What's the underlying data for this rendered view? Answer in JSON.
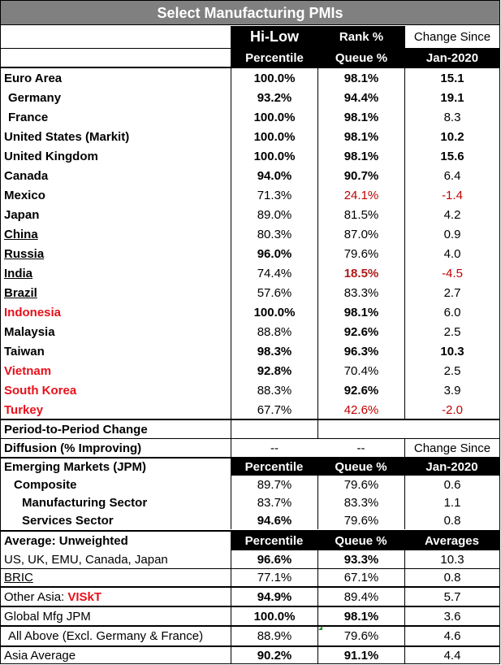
{
  "title": "Select Manufacturing PMIs",
  "header": {
    "col1_line1": "Hi-Low",
    "col1_line2": "Percentile",
    "col2_line1": "Rank %",
    "col2_line2": "Queue %",
    "col3_line1": "Change Since",
    "col3_line2": "Jan-2020"
  },
  "countries": [
    {
      "name": "Euro Area",
      "percentile": "100.0%",
      "queue": "98.1%",
      "change": "15.1"
    },
    {
      "name": "Germany",
      "percentile": "93.2%",
      "queue": "94.4%",
      "change": "19.1"
    },
    {
      "name": "France",
      "percentile": "100.0%",
      "queue": "98.1%",
      "change": "8.3"
    },
    {
      "name": "United States (Markit)",
      "percentile": "100.0%",
      "queue": "98.1%",
      "change": "10.2"
    },
    {
      "name": "United Kingdom",
      "percentile": "100.0%",
      "queue": "98.1%",
      "change": "15.6"
    },
    {
      "name": "Canada",
      "percentile": "94.0%",
      "queue": "90.7%",
      "change": "6.4"
    },
    {
      "name": "Mexico",
      "percentile": "71.3%",
      "queue": "24.1%",
      "change": "-1.4"
    },
    {
      "name": "Japan",
      "percentile": "89.0%",
      "queue": "81.5%",
      "change": "4.2"
    },
    {
      "name": "China",
      "percentile": "80.3%",
      "queue": "87.0%",
      "change": "0.9"
    },
    {
      "name": "Russia",
      "percentile": "96.0%",
      "queue": "79.6%",
      "change": "4.0"
    },
    {
      "name": "India",
      "percentile": "74.4%",
      "queue": "18.5%",
      "change": "-4.5"
    },
    {
      "name": "Brazil",
      "percentile": "57.6%",
      "queue": "83.3%",
      "change": "2.7"
    },
    {
      "name": "Indonesia",
      "percentile": "100.0%",
      "queue": "98.1%",
      "change": "6.0"
    },
    {
      "name": "Malaysia",
      "percentile": "88.8%",
      "queue": "92.6%",
      "change": "2.5"
    },
    {
      "name": "Taiwan",
      "percentile": "98.3%",
      "queue": "96.3%",
      "change": "10.3"
    },
    {
      "name": "Vietnam",
      "percentile": "92.8%",
      "queue": "70.4%",
      "change": "2.5"
    },
    {
      "name": "South Korea",
      "percentile": "88.3%",
      "queue": "92.6%",
      "change": "3.9"
    },
    {
      "name": "Turkey",
      "percentile": "67.7%",
      "queue": "42.6%",
      "change": "-2.0"
    }
  ],
  "period": {
    "label": "Period-to-Period Change"
  },
  "diffusion": {
    "label": "Diffusion (% Improving)",
    "col1": "--",
    "col2": "--",
    "col3": "Change Since"
  },
  "em": {
    "label": "Emerging Markets (JPM)",
    "col1": "Percentile",
    "col2": "Queue %",
    "col3": "Jan-2020",
    "rows": [
      {
        "name": "Composite",
        "percentile": "89.7%",
        "queue": "79.6%",
        "change": "0.6"
      },
      {
        "name": "Manufacturing Sector",
        "percentile": "83.7%",
        "queue": "83.3%",
        "change": "1.1"
      },
      {
        "name": "Services Sector",
        "percentile": "94.6%",
        "queue": "79.6%",
        "change": "0.8"
      }
    ]
  },
  "avg": {
    "label": "Average: Unweighted",
    "col1": "Percentile",
    "col2": "Queue %",
    "col3": "Averages",
    "rows": [
      {
        "name": "US, UK, EMU, Canada, Japan",
        "percentile": "96.6%",
        "queue": "93.3%",
        "change": "10.3"
      },
      {
        "name": "BRIC",
        "percentile": "77.1%",
        "queue": "67.1%",
        "change": "0.8"
      },
      {
        "name": "Other Asia: ",
        "name_suffix": "VISkT",
        "percentile": "94.9%",
        "queue": "89.4%",
        "change": "5.7"
      },
      {
        "name": "Global Mfg JPM",
        "percentile": "100.0%",
        "queue": "98.1%",
        "change": "3.6"
      },
      {
        "name": "All Above (Excl. Germany & France)",
        "percentile": "88.9%",
        "queue": "79.6%",
        "change": "4.6"
      },
      {
        "name": "Asia Average",
        "percentile": "90.2%",
        "queue": "91.1%",
        "change": "4.4"
      }
    ]
  },
  "colors": {
    "title_bg": "#808080",
    "red_text": "#e8101a",
    "dark_red_text": "#c00000",
    "header_bg": "#000000"
  }
}
